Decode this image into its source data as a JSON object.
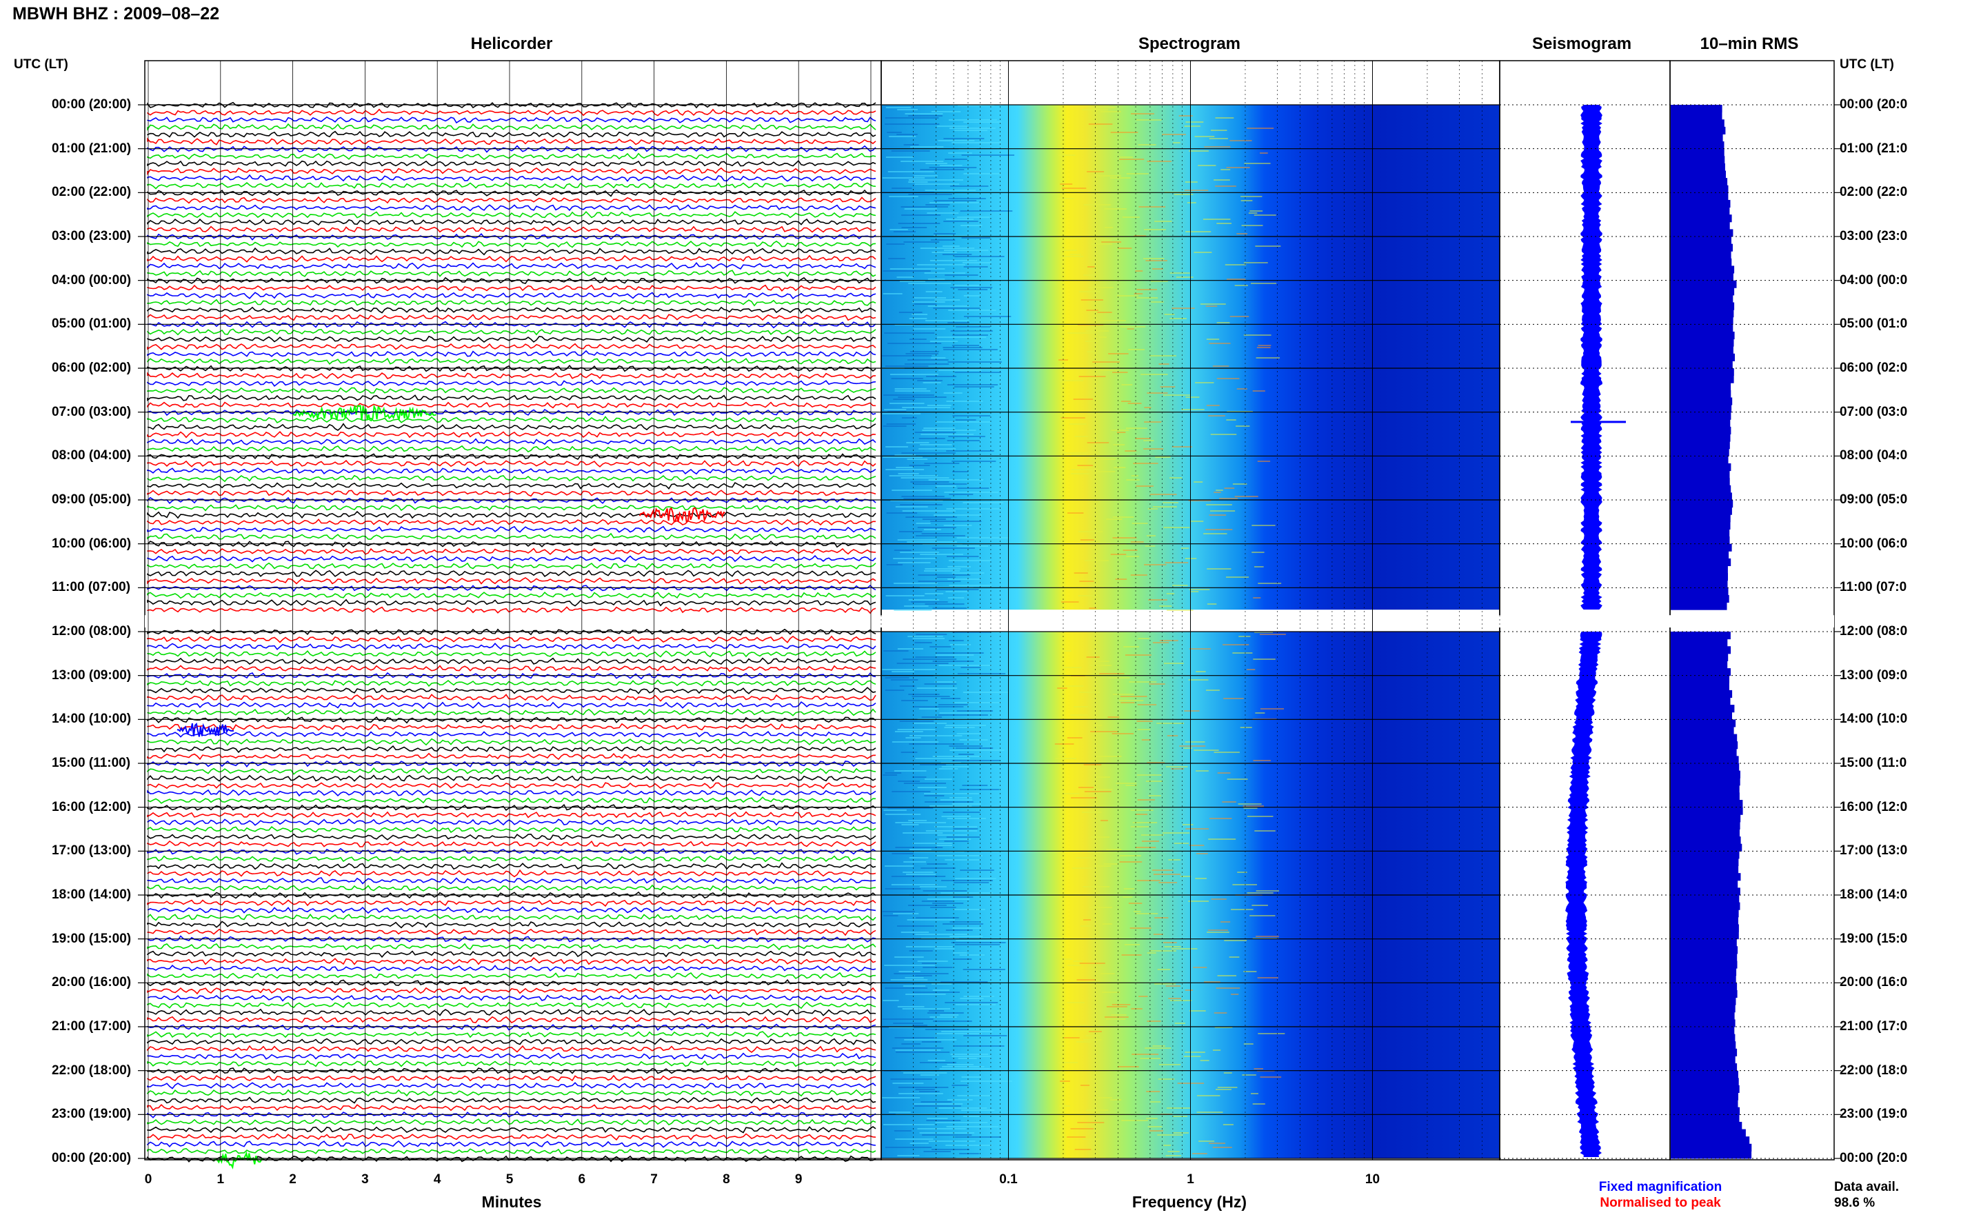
{
  "page_title": "MBWH BHZ : 2009–08–22",
  "headers": {
    "helicorder": "Helicorder",
    "spectrogram": "Spectrogram",
    "seismogram": "Seismogram",
    "rms": "10–min RMS"
  },
  "axis_label_left": "UTC (LT)",
  "axis_label_right": "UTC (LT)",
  "time_labels": [
    "00:00 (20:00)",
    "01:00 (21:00)",
    "02:00 (22:00)",
    "03:00 (23:00)",
    "04:00 (00:00)",
    "05:00 (01:00)",
    "06:00 (02:00)",
    "07:00 (03:00)",
    "08:00 (04:00)",
    "09:00 (05:00)",
    "10:00 (06:00)",
    "11:00 (07:00)",
    "12:00 (08:00)",
    "13:00 (09:00)",
    "14:00 (10:00)",
    "15:00 (11:00)",
    "16:00 (12:00)",
    "17:00 (13:00)",
    "18:00 (14:00)",
    "19:00 (15:00)",
    "20:00 (16:00)",
    "21:00 (17:00)",
    "22:00 (18:00)",
    "23:00 (19:00)",
    "00:00 (20:00)"
  ],
  "time_labels_right": [
    "00:00 (20:0",
    "01:00 (21:0",
    "02:00 (22:0",
    "03:00 (23:0",
    "04:00 (00:0",
    "05:00 (01:0",
    "06:00 (02:0",
    "07:00 (03:0",
    "08:00 (04:0",
    "09:00 (05:0",
    "10:00 (06:0",
    "11:00 (07:0",
    "12:00 (08:0",
    "13:00 (09:0",
    "14:00 (10:0",
    "15:00 (11:0",
    "16:00 (12:0",
    "17:00 (13:0",
    "18:00 (14:0",
    "19:00 (15:0",
    "20:00 (16:0",
    "21:00 (17:0",
    "22:00 (18:0",
    "23:00 (19:0",
    "00:00 (20:0"
  ],
  "minutes_ticks": [
    "0",
    "1",
    "2",
    "3",
    "4",
    "5",
    "6",
    "7",
    "8",
    "9"
  ],
  "minutes_label": "Minutes",
  "frequency_ticks": [
    "0.1",
    "1",
    "10"
  ],
  "frequency_label": "Frequency (Hz)",
  "legend": {
    "fixed": "Fixed magnification",
    "normalised": "Normalised to peak",
    "fixed_color": "#0000ff",
    "normalised_color": "#ff0000"
  },
  "data_avail_label": "Data avail.",
  "data_avail_value": "98.6 %",
  "chart_data": [
    {
      "type": "line",
      "title": "Helicorder",
      "xlabel": "Minutes",
      "xlim": [
        0,
        10
      ],
      "trace_colors": [
        "#000000",
        "#ff0000",
        "#0000ff",
        "#00dd00"
      ],
      "traces_per_hour": 6,
      "gap_hours": [
        11.5,
        12.0
      ],
      "events": [
        {
          "hour": 7.0,
          "minute_start": 2.0,
          "minute_end": 4.0,
          "color": "#00ff00"
        },
        {
          "hour": 9.3,
          "minute_start": 6.8,
          "minute_end": 8.0,
          "color": "#ff0000"
        },
        {
          "hour": 14.2,
          "minute_start": 0.4,
          "minute_end": 1.2,
          "color": "#0000ff"
        },
        {
          "hour": 24.0,
          "minute_start": 0.9,
          "minute_end": 1.6,
          "color": "#00ff00"
        }
      ]
    },
    {
      "type": "heatmap",
      "title": "Spectrogram",
      "xlabel": "Frequency (Hz)",
      "xscale": "log",
      "xlim": [
        0.02,
        50
      ],
      "colormap": [
        "#0000c0",
        "#0040ff",
        "#00a0ff",
        "#40e0ff",
        "#a0ff60",
        "#ffff00",
        "#ff8000"
      ],
      "peak_band_hz": [
        0.2,
        0.35
      ],
      "gap_hours": [
        11.5,
        12.0
      ]
    },
    {
      "type": "line",
      "title": "Seismogram",
      "color": "#0000ff",
      "gap_hours": [
        11.5,
        12.0
      ]
    },
    {
      "type": "bar",
      "title": "10–min RMS",
      "color": "#0000cc",
      "hours": [
        0,
        1,
        2,
        3,
        4,
        5,
        6,
        7,
        8,
        9,
        10,
        11,
        12,
        13,
        14,
        15,
        16,
        17,
        18,
        19,
        20,
        21,
        22,
        23,
        24
      ],
      "values": [
        0.55,
        0.58,
        0.62,
        0.65,
        0.68,
        0.67,
        0.66,
        0.64,
        0.62,
        0.64,
        0.63,
        0.6,
        null,
        0.62,
        0.68,
        0.72,
        0.75,
        0.74,
        0.72,
        0.7,
        0.7,
        0.68,
        0.7,
        0.74,
        0.9
      ],
      "gap_hours": [
        11.5,
        12.0
      ]
    }
  ]
}
